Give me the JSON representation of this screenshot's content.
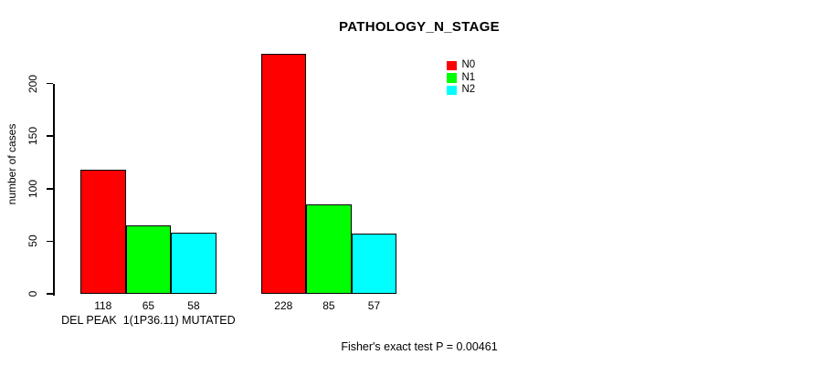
{
  "title": "PATHOLOGY_N_STAGE",
  "footer": "Fisher's exact test P = 0.00461",
  "y_axis": {
    "label": "number of cases",
    "tick_labels": [
      "0",
      "50",
      "100",
      "150",
      "200"
    ]
  },
  "legend": {
    "items": [
      {
        "label": "N0",
        "color": "#ff0000"
      },
      {
        "label": "N1",
        "color": "#00ff00"
      },
      {
        "label": "N2",
        "color": "#00ffff"
      }
    ]
  },
  "chart_data": {
    "type": "bar",
    "title": "PATHOLOGY_N_STAGE",
    "ylabel": "number of cases",
    "xlabel": "",
    "yticks": [
      0,
      50,
      100,
      150,
      200
    ],
    "ylim": [
      0,
      230
    ],
    "grid": false,
    "legend_position": "top, right of center",
    "categories": [
      "DEL PEAK  1(1P36.11) MUTATED",
      ""
    ],
    "series": [
      {
        "name": "N0",
        "color": "#ff0000",
        "values": [
          118,
          228
        ]
      },
      {
        "name": "N1",
        "color": "#00ff00",
        "values": [
          65,
          85
        ]
      },
      {
        "name": "N2",
        "color": "#00ffff",
        "values": [
          58,
          57
        ]
      }
    ],
    "bar_value_labels": [
      [
        "118",
        "65",
        "58"
      ],
      [
        "228",
        "85",
        "57"
      ]
    ],
    "annotation": "Fisher's exact test P = 0.00461"
  }
}
